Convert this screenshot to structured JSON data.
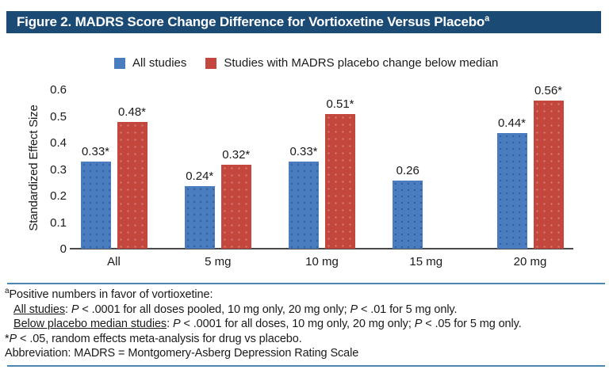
{
  "title": {
    "text": "Figure 2. MADRS Score Change Difference for Vortioxetine Versus Placebo",
    "superscript": "a"
  },
  "chart_data": {
    "type": "bar",
    "categories": [
      "All",
      "5 mg",
      "10 mg",
      "15 mg",
      "20 mg"
    ],
    "series": [
      {
        "name": "All studies",
        "color": "#4a7cc0",
        "values": [
          0.33,
          0.24,
          0.33,
          0.26,
          0.44
        ],
        "labels": [
          "0.33*",
          "0.24*",
          "0.33*",
          "0.26",
          "0.44*"
        ]
      },
      {
        "name": "Studies with MADRS placebo change below median",
        "color": "#c4473e",
        "values": [
          0.48,
          0.32,
          0.51,
          null,
          0.56
        ],
        "labels": [
          "0.48*",
          "0.32*",
          "0.51*",
          null,
          "0.56*"
        ]
      }
    ],
    "title": "",
    "xlabel": "",
    "ylabel": "Standardized Effect Size",
    "ylim": [
      0,
      0.6
    ],
    "yticks": [
      "0",
      "0.1",
      "0.2",
      "0.3",
      "0.4",
      "0.5",
      "0.6"
    ],
    "grid": false,
    "legend_position": "top"
  },
  "footnotes": {
    "lines": [
      {
        "indent": false,
        "segments": [
          {
            "text": "a",
            "style": "sup"
          },
          {
            "text": "Positive numbers in favor of vortioxetine:",
            "style": ""
          }
        ]
      },
      {
        "indent": true,
        "segments": [
          {
            "text": "All studies",
            "style": "u"
          },
          {
            "text": ": ",
            "style": ""
          },
          {
            "text": "P",
            "style": "i"
          },
          {
            "text": " < .0001 for all doses pooled, 10 mg only, 20 mg only; ",
            "style": ""
          },
          {
            "text": "P",
            "style": "i"
          },
          {
            "text": " < .01 for 5 mg only.",
            "style": ""
          }
        ]
      },
      {
        "indent": true,
        "segments": [
          {
            "text": "Below placebo median studies",
            "style": "u"
          },
          {
            "text": ": ",
            "style": ""
          },
          {
            "text": "P",
            "style": "i"
          },
          {
            "text": " < .0001 for all doses, 10 mg only, 20 mg only; ",
            "style": ""
          },
          {
            "text": "P",
            "style": "i"
          },
          {
            "text": " < .05 for 5 mg only.",
            "style": ""
          }
        ]
      },
      {
        "indent": false,
        "segments": [
          {
            "text": "*",
            "style": ""
          },
          {
            "text": "P",
            "style": "i"
          },
          {
            "text": " < .05, random effects meta-analysis for drug vs placebo.",
            "style": ""
          }
        ]
      },
      {
        "indent": false,
        "segments": [
          {
            "text": "Abbreviation: MADRS = Montgomery-Asberg Depression Rating Scale",
            "style": ""
          }
        ]
      }
    ]
  },
  "colors": {
    "title_bar_background": "#1b4a74",
    "title_text": "#ffffff",
    "series_all_studies": "#4a7cc0",
    "series_below_median": "#c4473e",
    "divider_rule": "#4e86b2",
    "axis_line": "#4a4a4a"
  }
}
